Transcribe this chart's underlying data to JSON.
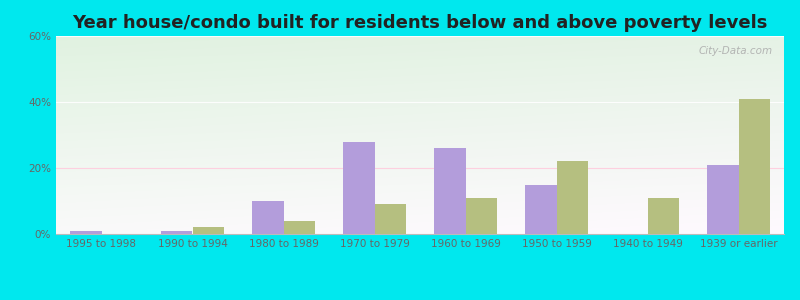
{
  "title": "Year house/condo built for residents below and above poverty levels",
  "categories": [
    "1995 to 1998",
    "1990 to 1994",
    "1980 to 1989",
    "1970 to 1979",
    "1960 to 1969",
    "1950 to 1959",
    "1940 to 1949",
    "1939 or earlier"
  ],
  "below_poverty": [
    1,
    1,
    10,
    28,
    26,
    15,
    0,
    21
  ],
  "above_poverty": [
    0,
    2,
    4,
    9,
    11,
    22,
    11,
    41
  ],
  "below_color": "#b39ddb",
  "above_color": "#b5bf80",
  "outer_bg": "#00e8ee",
  "ylim": [
    0,
    60
  ],
  "yticks": [
    0,
    20,
    40,
    60
  ],
  "ytick_labels": [
    "0%",
    "20%",
    "40%",
    "60%"
  ],
  "title_fontsize": 13,
  "tick_fontsize": 7.5,
  "legend_fontsize": 9
}
